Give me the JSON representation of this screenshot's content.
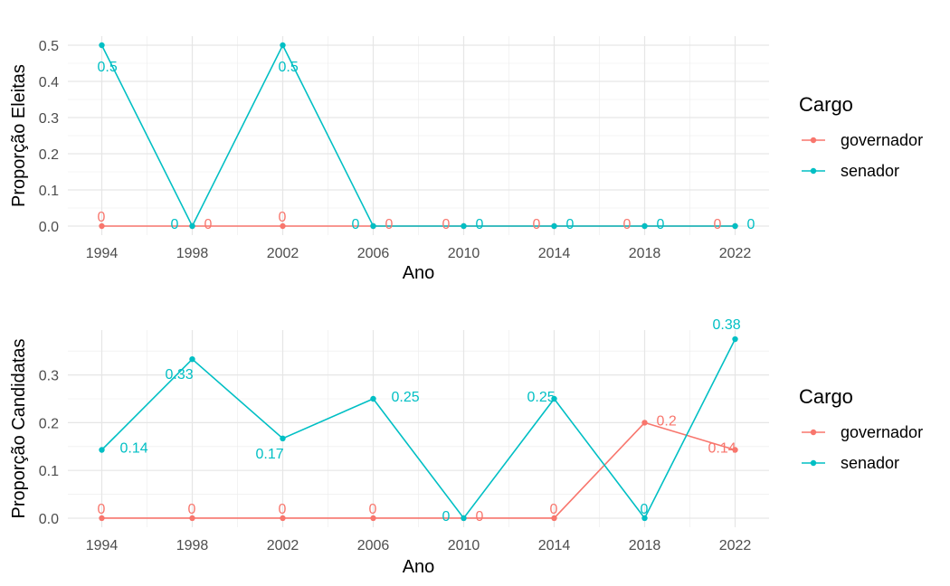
{
  "colors": {
    "governador": "#F8766D",
    "senador": "#00BFC4"
  },
  "legend": {
    "title": "Cargo",
    "items": [
      "governador",
      "senador"
    ]
  },
  "chart_data": [
    {
      "type": "line",
      "x": [
        1994,
        1998,
        2002,
        2006,
        2010,
        2014,
        2018,
        2022
      ],
      "xlabel": "Ano",
      "ylabel": "Proporção Eleitas",
      "xlim": [
        1992.5,
        2023.5
      ],
      "ylim": [
        -0.025,
        0.525
      ],
      "yticks": [
        0.0,
        0.1,
        0.2,
        0.3,
        0.4,
        0.5
      ],
      "ytick_labels": [
        "0.0",
        "0.1",
        "0.2",
        "0.3",
        "0.4",
        "0.5"
      ],
      "xticks": [
        "1994",
        "1998",
        "2002",
        "2006",
        "2010",
        "2014",
        "2018",
        "2022"
      ],
      "legend_placement": "right",
      "grid": true,
      "series": [
        {
          "name": "governador",
          "values": [
            0,
            0,
            0,
            0,
            0,
            0,
            0,
            0
          ],
          "labels": [
            "0",
            "0",
            "0",
            "0",
            "0",
            "0",
            "0",
            "0"
          ]
        },
        {
          "name": "senador",
          "values": [
            0.5,
            0,
            0.5,
            0,
            0,
            0,
            0,
            0
          ],
          "labels": [
            "0.5",
            "0",
            "0.5",
            "0",
            "0",
            "0",
            "0",
            "0"
          ]
        }
      ]
    },
    {
      "type": "line",
      "x": [
        1994,
        1998,
        2002,
        2006,
        2010,
        2014,
        2018,
        2022
      ],
      "xlabel": "Ano",
      "ylabel": "Proporção Candidatas",
      "xlim": [
        1992.5,
        2023.5
      ],
      "ylim": [
        -0.019,
        0.394
      ],
      "yticks": [
        0.0,
        0.1,
        0.2,
        0.3
      ],
      "ytick_labels": [
        "0.0",
        "0.1",
        "0.2",
        "0.3"
      ],
      "xticks": [
        "1994",
        "1998",
        "2002",
        "2006",
        "2010",
        "2014",
        "2018",
        "2022"
      ],
      "legend_placement": "right",
      "grid": true,
      "series": [
        {
          "name": "governador",
          "values": [
            0,
            0,
            0,
            0,
            0,
            0,
            0.2,
            0.143
          ],
          "labels": [
            "0",
            "0",
            "0",
            "0",
            "0",
            "0",
            "0.2",
            "0.14"
          ]
        },
        {
          "name": "senador",
          "values": [
            0.143,
            0.333,
            0.167,
            0.25,
            0,
            0.25,
            0,
            0.375
          ],
          "labels": [
            "0.14",
            "0.33",
            "0.17",
            "0.25",
            "0",
            "0.25",
            "0",
            "0.38"
          ]
        }
      ]
    }
  ]
}
